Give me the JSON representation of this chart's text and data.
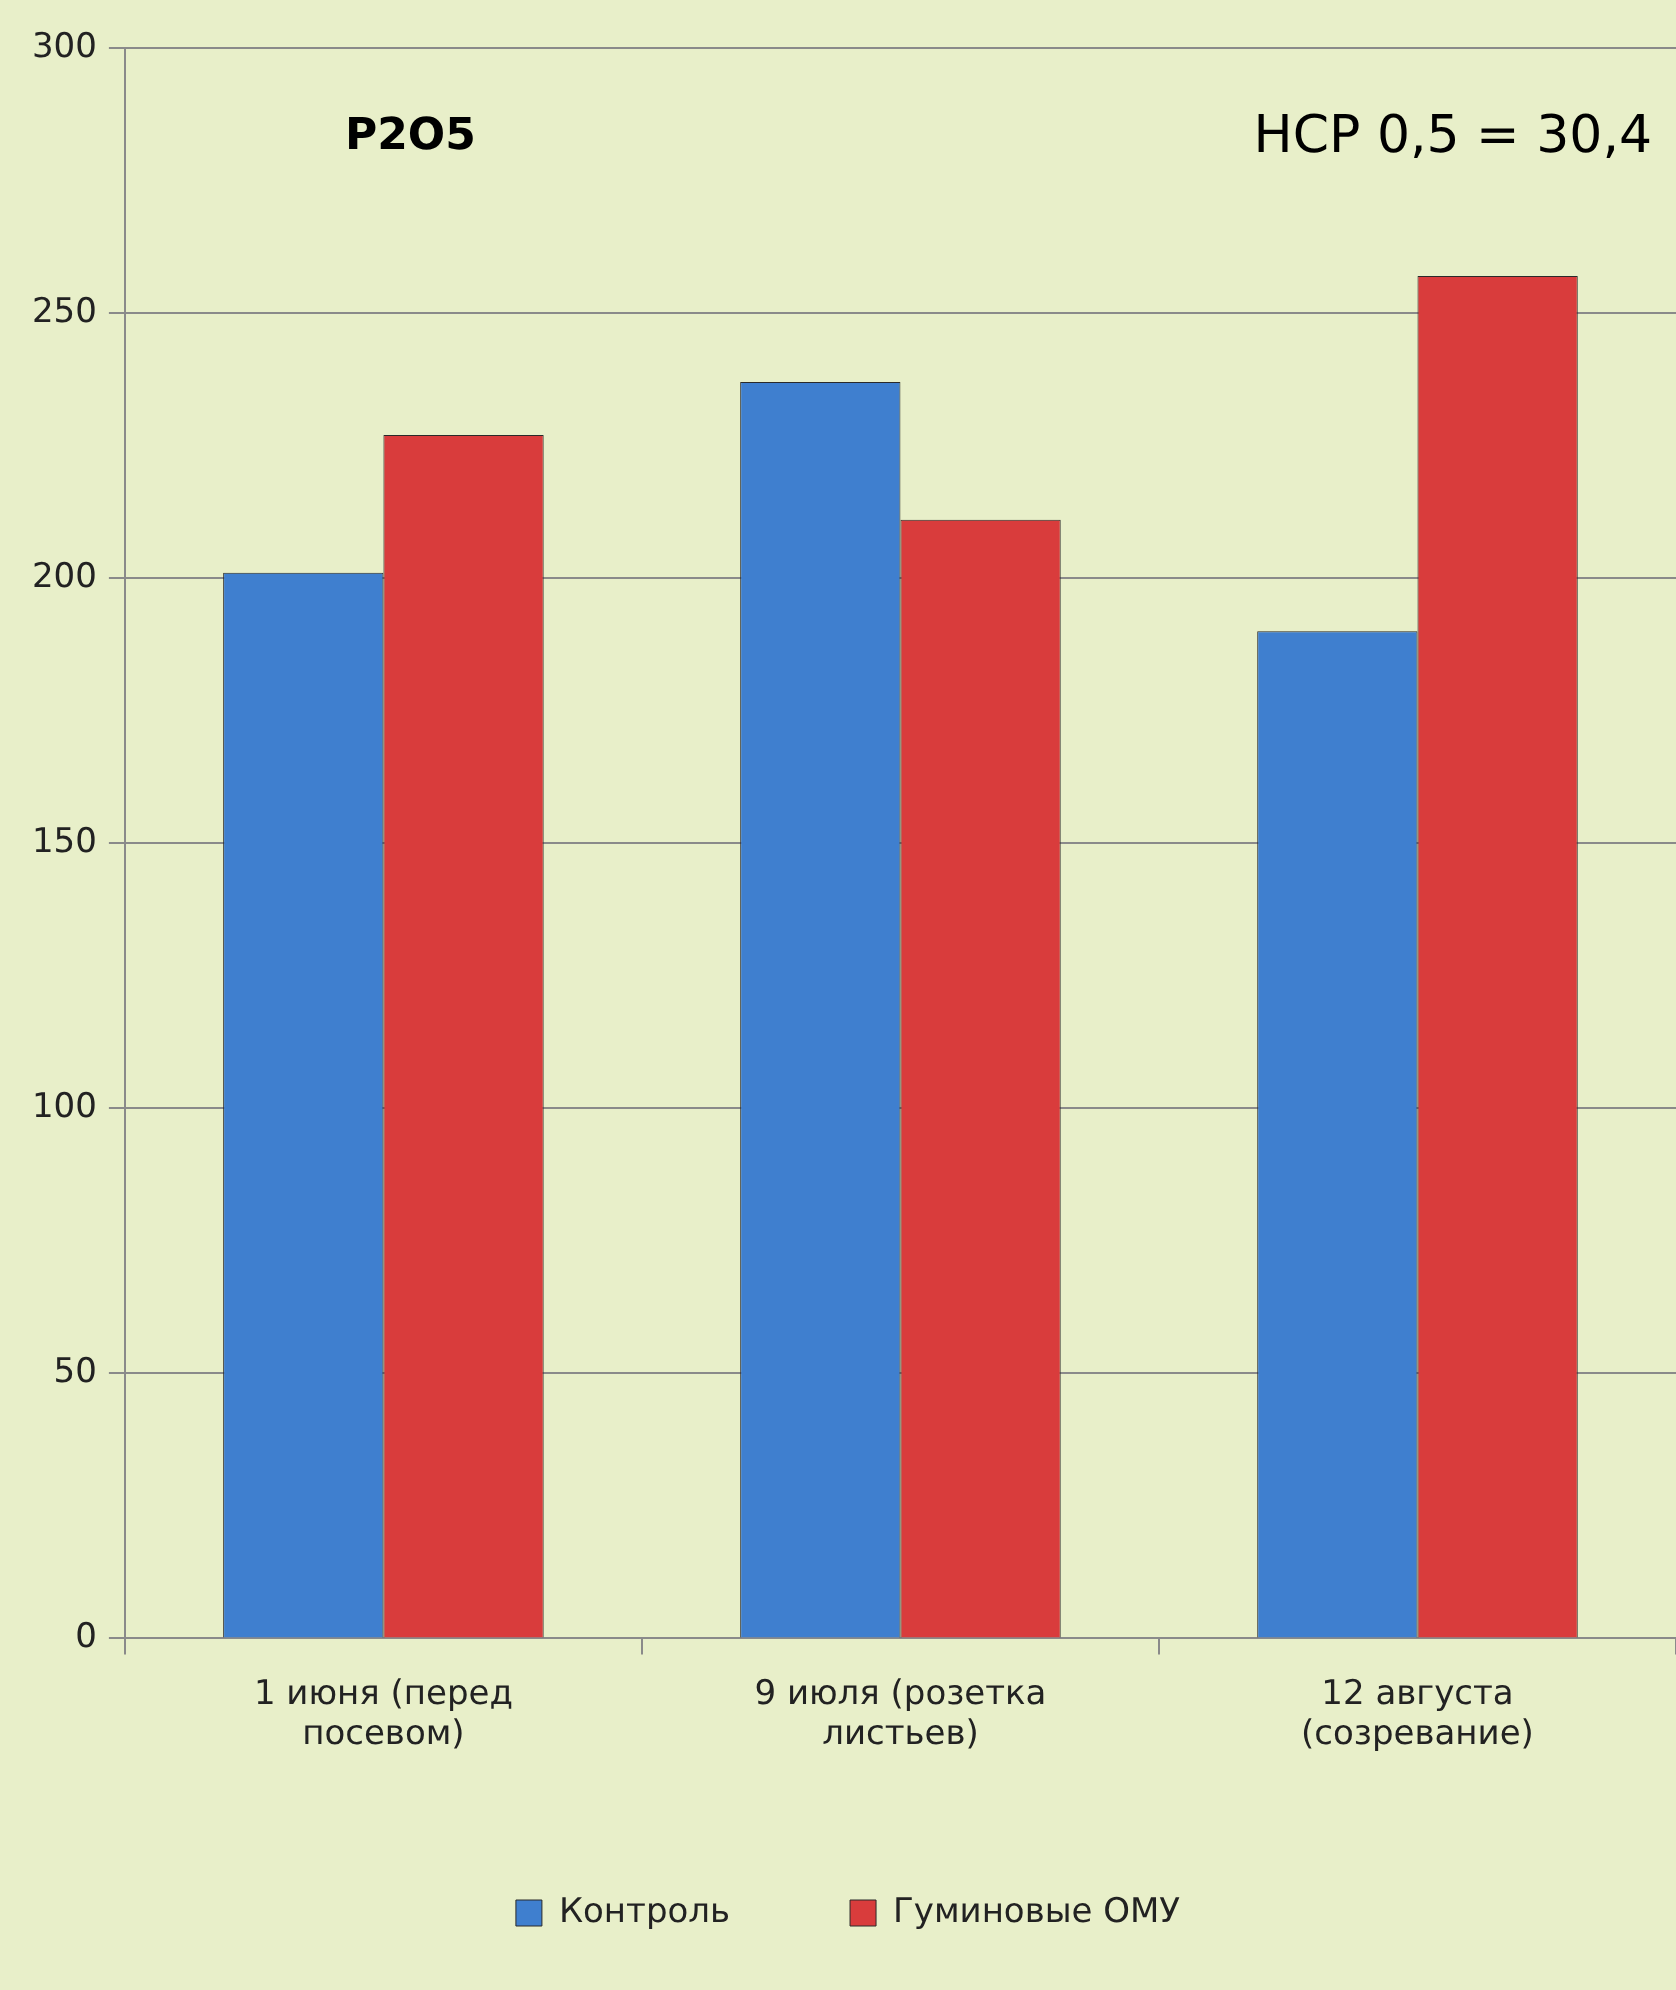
{
  "chart_data": {
    "type": "bar",
    "title": "P2O5",
    "annotations": [
      "НСР 0,5 = 30,4"
    ],
    "categories": [
      "1 июня (перед посевом)",
      "9 июля (розетка листьев)",
      "12 августа (созревание)"
    ],
    "series": [
      {
        "name": "Контроль",
        "color": "#3f7fcf",
        "values": [
          201,
          237,
          190
        ]
      },
      {
        "name": "Гуминовые ОМУ",
        "color": "#d93c3c",
        "values": [
          227,
          211,
          257
        ]
      }
    ],
    "ylim": [
      0,
      300
    ],
    "yticks": [
      0,
      50,
      100,
      150,
      200,
      250,
      300
    ],
    "grid": "y",
    "legend": "bottom"
  }
}
